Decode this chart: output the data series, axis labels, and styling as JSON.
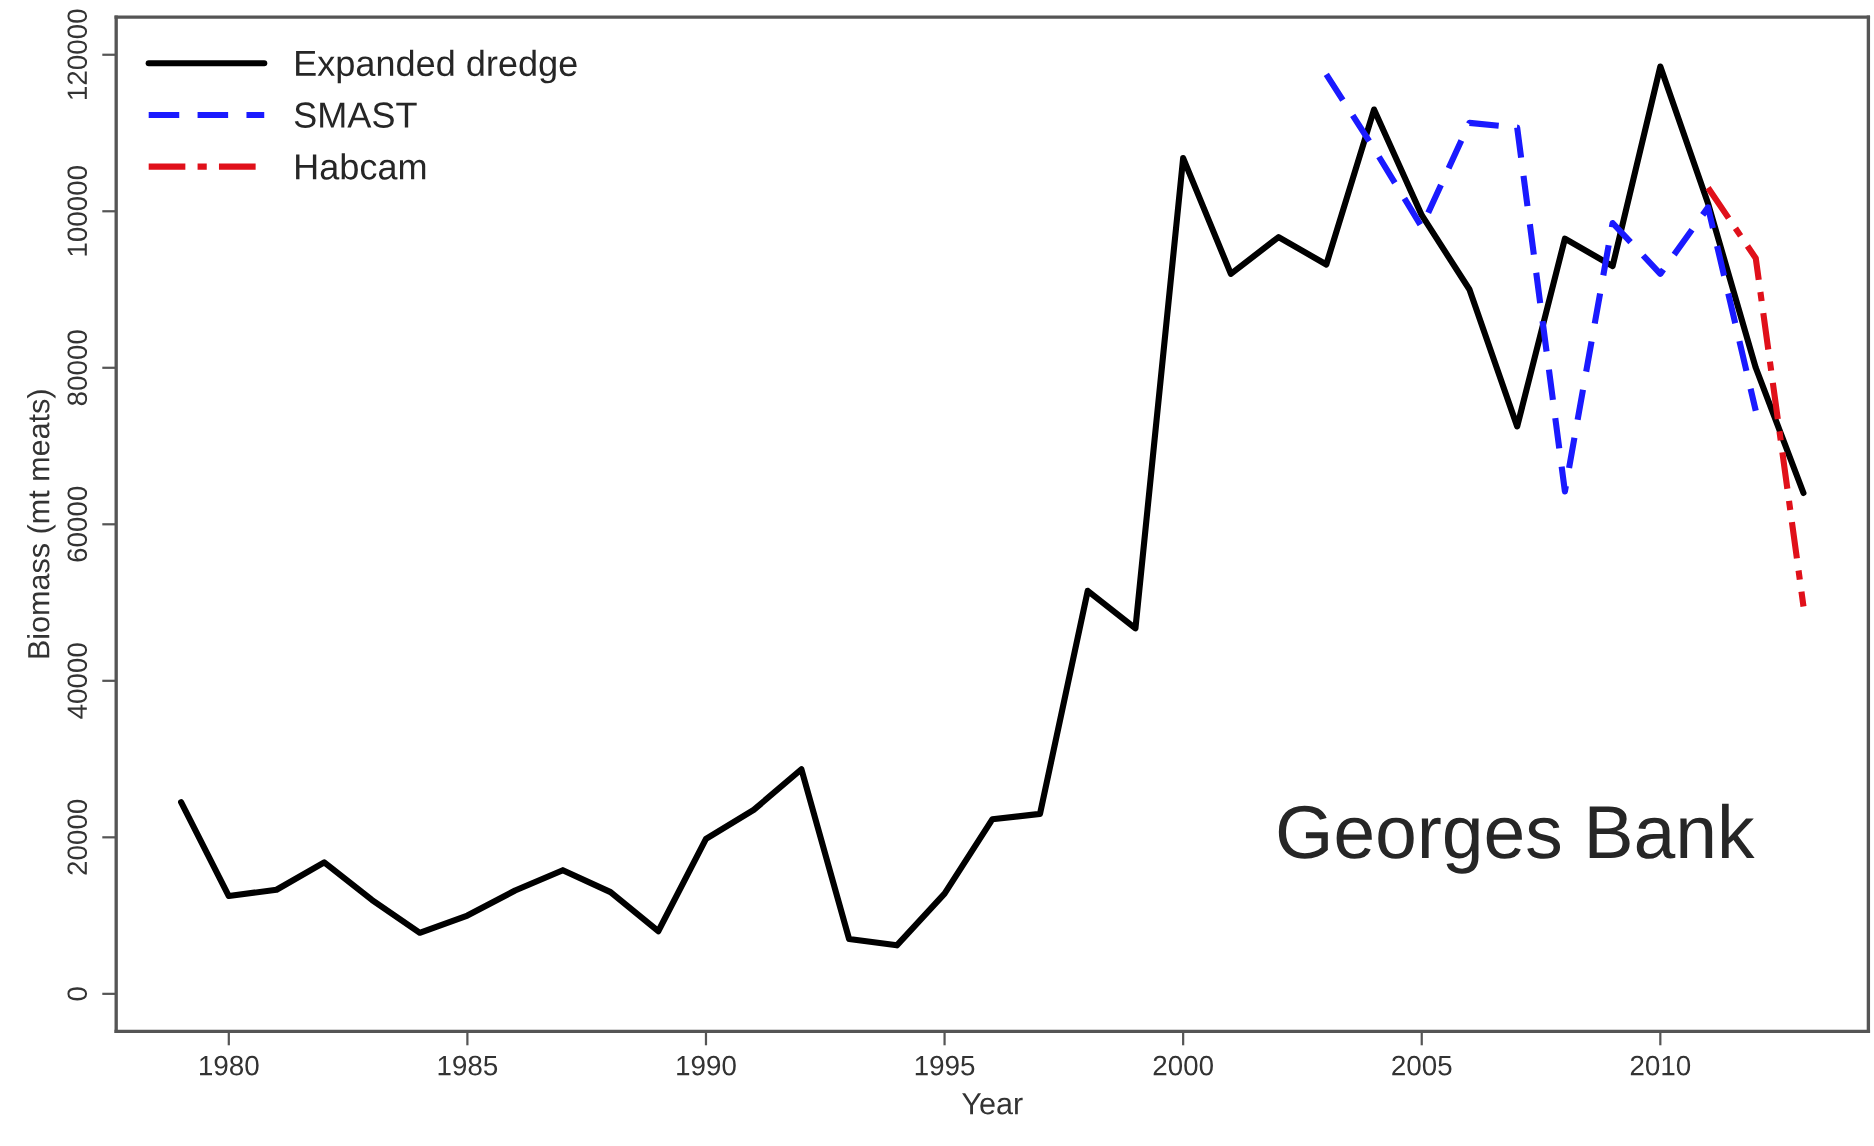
{
  "chart_data": {
    "type": "line",
    "xlabel": "Year",
    "ylabel": "Biomass (mt meats)",
    "xlim": [
      1977.64,
      2014.36
    ],
    "xticks": [
      1980,
      1985,
      1990,
      1995,
      2000,
      2005,
      2010
    ],
    "ylim": [
      -4800,
      124800
    ],
    "yticks": [
      0,
      20000,
      40000,
      60000,
      80000,
      100000,
      120000
    ],
    "grid": false,
    "legend": "top left",
    "marker": "none",
    "annotations": [
      "Georges Bank"
    ],
    "series": [
      {
        "name": "Expanded dredge",
        "color": "#000000",
        "line_style": "solid",
        "x": [
          1979,
          1980,
          1981,
          1982,
          1983,
          1984,
          1985,
          1986,
          1987,
          1988,
          1989,
          1990,
          1991,
          1992,
          1993,
          1994,
          1995,
          1996,
          1997,
          1998,
          1999,
          2000,
          2001,
          2002,
          2003,
          2004,
          2005,
          2006,
          2007,
          2008,
          2009,
          2010,
          2011,
          2012,
          2013
        ],
        "values": [
          24500,
          12500,
          13300,
          16800,
          12000,
          7800,
          10000,
          13200,
          15800,
          13000,
          8000,
          19800,
          23500,
          28700,
          7000,
          6200,
          12800,
          22300,
          23000,
          51500,
          46700,
          106800,
          92000,
          96700,
          93200,
          113000,
          99500,
          90000,
          72500,
          96500,
          93000,
          118500,
          101000,
          80000,
          64000
        ]
      },
      {
        "name": "SMAST",
        "color": "#1a1aff",
        "line_style": "dashed",
        "x": [
          2003,
          2004,
          2005,
          2006,
          2007,
          2008,
          2009,
          2010,
          2011,
          2012
        ],
        "values": [
          117500,
          108000,
          98000,
          111300,
          110700,
          64200,
          98500,
          92000,
          100500,
          74500
        ]
      },
      {
        "name": "Habcam",
        "color": "#e0101a",
        "line_style": "dashdot",
        "x": [
          2011,
          2012,
          2013
        ],
        "values": [
          103000,
          94000,
          49500
        ]
      }
    ]
  }
}
